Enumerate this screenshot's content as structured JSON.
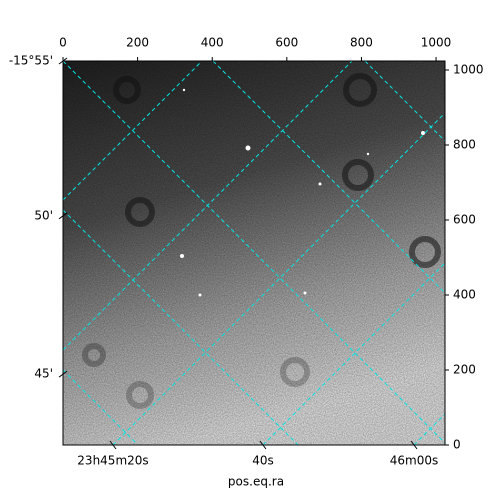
{
  "chart_data": {
    "type": "image",
    "xlabel": "pos.eq.ra",
    "xlim": [
      0,
      1024
    ],
    "ylim": [
      0,
      1024
    ],
    "xticks": [
      0,
      200,
      400,
      600,
      800,
      1000
    ],
    "yticks": [
      0,
      200,
      400,
      600,
      800,
      1000
    ],
    "ra_ticks": [
      {
        "value": 134,
        "label": "23h45m20s"
      },
      {
        "value": 536,
        "label": "40s"
      },
      {
        "value": 941,
        "label": "46m00s"
      }
    ],
    "dec_ticks": [
      {
        "value": 1024,
        "label": "-15°55'"
      },
      {
        "value": 611,
        "label": "50'"
      },
      {
        "value": 189,
        "label": "45'"
      }
    ]
  }
}
